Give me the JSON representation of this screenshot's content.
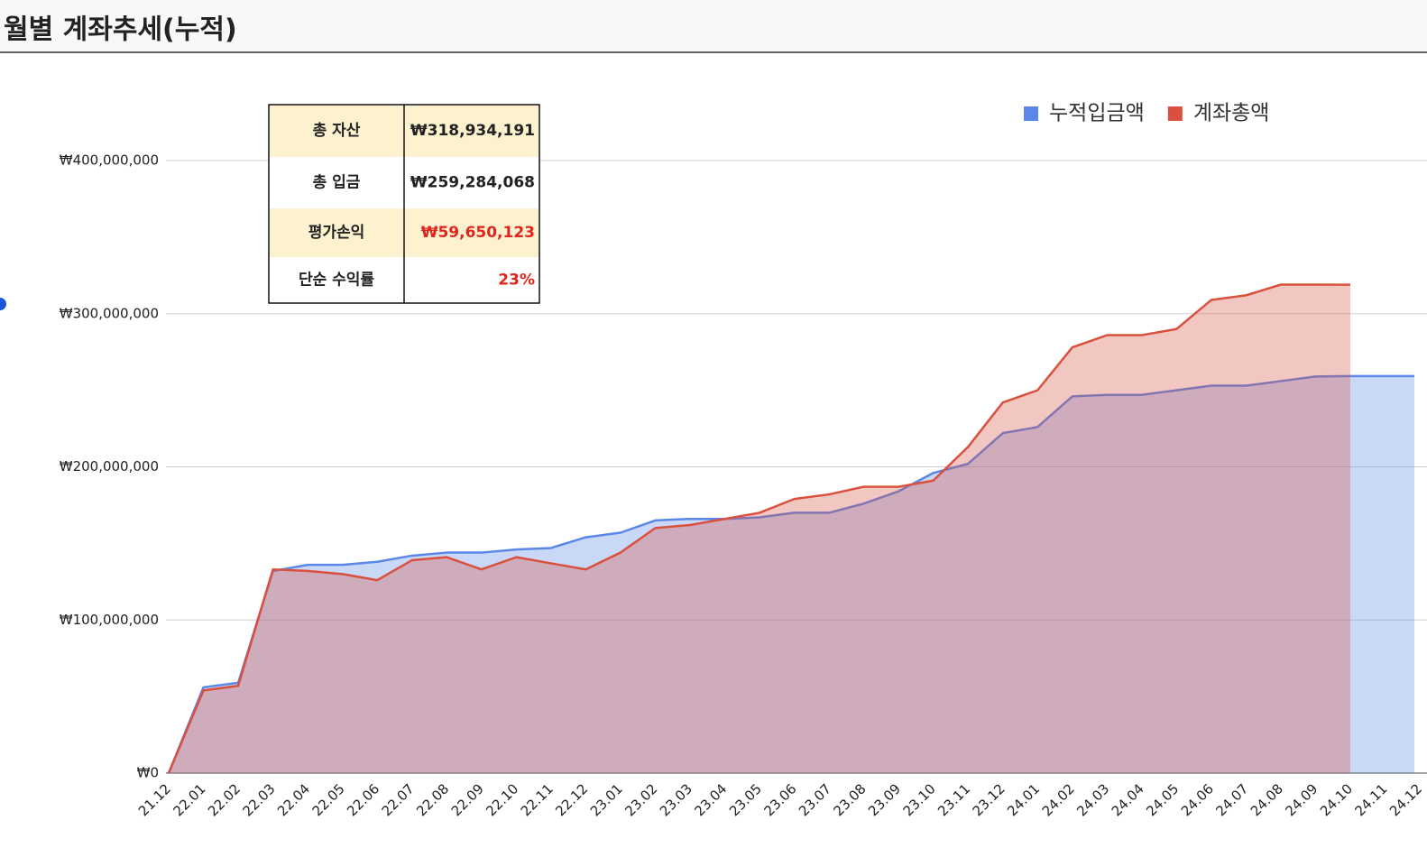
{
  "header": {
    "title": "월별 계좌추세(누적)"
  },
  "table": {
    "rows": [
      [
        "총 자산",
        "₩318,934,191"
      ],
      [
        "총 입금",
        "₩259,284,068"
      ],
      [
        "평가손익",
        "₩59,650,123"
      ],
      [
        "단순 수익률",
        "23%"
      ]
    ]
  },
  "chart_data": {
    "type": "area",
    "categories": [
      "21.12",
      "22.01",
      "22.02",
      "22.03",
      "22.04",
      "22.05",
      "22.06",
      "22.07",
      "22.08",
      "22.09",
      "22.10",
      "22.11",
      "22.12",
      "23.01",
      "23.02",
      "23.03",
      "23.04",
      "23.05",
      "23.06",
      "23.07",
      "23.08",
      "23.09",
      "23.10",
      "23.11",
      "23.12",
      "24.01",
      "24.02",
      "24.03",
      "24.04",
      "24.05",
      "24.06",
      "24.07",
      "24.08",
      "24.09",
      "24.10",
      "24.11",
      "24.12"
    ],
    "series": [
      {
        "name": "누적입금액",
        "color": "#5b87e8",
        "values": [
          0,
          56000000,
          59000000,
          132000000,
          136000000,
          136000000,
          138000000,
          142000000,
          144000000,
          144000000,
          146000000,
          147000000,
          154000000,
          157000000,
          165000000,
          166000000,
          166000000,
          167000000,
          170000000,
          170000000,
          176000000,
          184000000,
          196000000,
          202000000,
          222000000,
          226000000,
          246000000,
          247000000,
          247000000,
          250000000,
          253000000,
          253000000,
          256000000,
          259000000,
          259284068,
          259284068,
          259284068
        ]
      },
      {
        "name": "계좌총액",
        "color": "#d9513e",
        "values": [
          0,
          54000000,
          57000000,
          133000000,
          132000000,
          130000000,
          126000000,
          139000000,
          141000000,
          133000000,
          141000000,
          137000000,
          133000000,
          144000000,
          160000000,
          162000000,
          166000000,
          170000000,
          179000000,
          182000000,
          187000000,
          187000000,
          191000000,
          213000000,
          242000000,
          250000000,
          278000000,
          286000000,
          286000000,
          290000000,
          309000000,
          312000000,
          319000000,
          319000000,
          318934191,
          null,
          null
        ]
      }
    ],
    "ylim": [
      0,
      400000000
    ],
    "yticks": [
      {
        "value": 0,
        "label": "₩0"
      },
      {
        "value": 100000000,
        "label": "₩100,000,000"
      },
      {
        "value": 200000000,
        "label": "₩200,000,000"
      },
      {
        "value": 300000000,
        "label": "₩300,000,000"
      },
      {
        "value": 400000000,
        "label": "₩400,000,000"
      }
    ],
    "grid": true,
    "legend": "top-right"
  }
}
